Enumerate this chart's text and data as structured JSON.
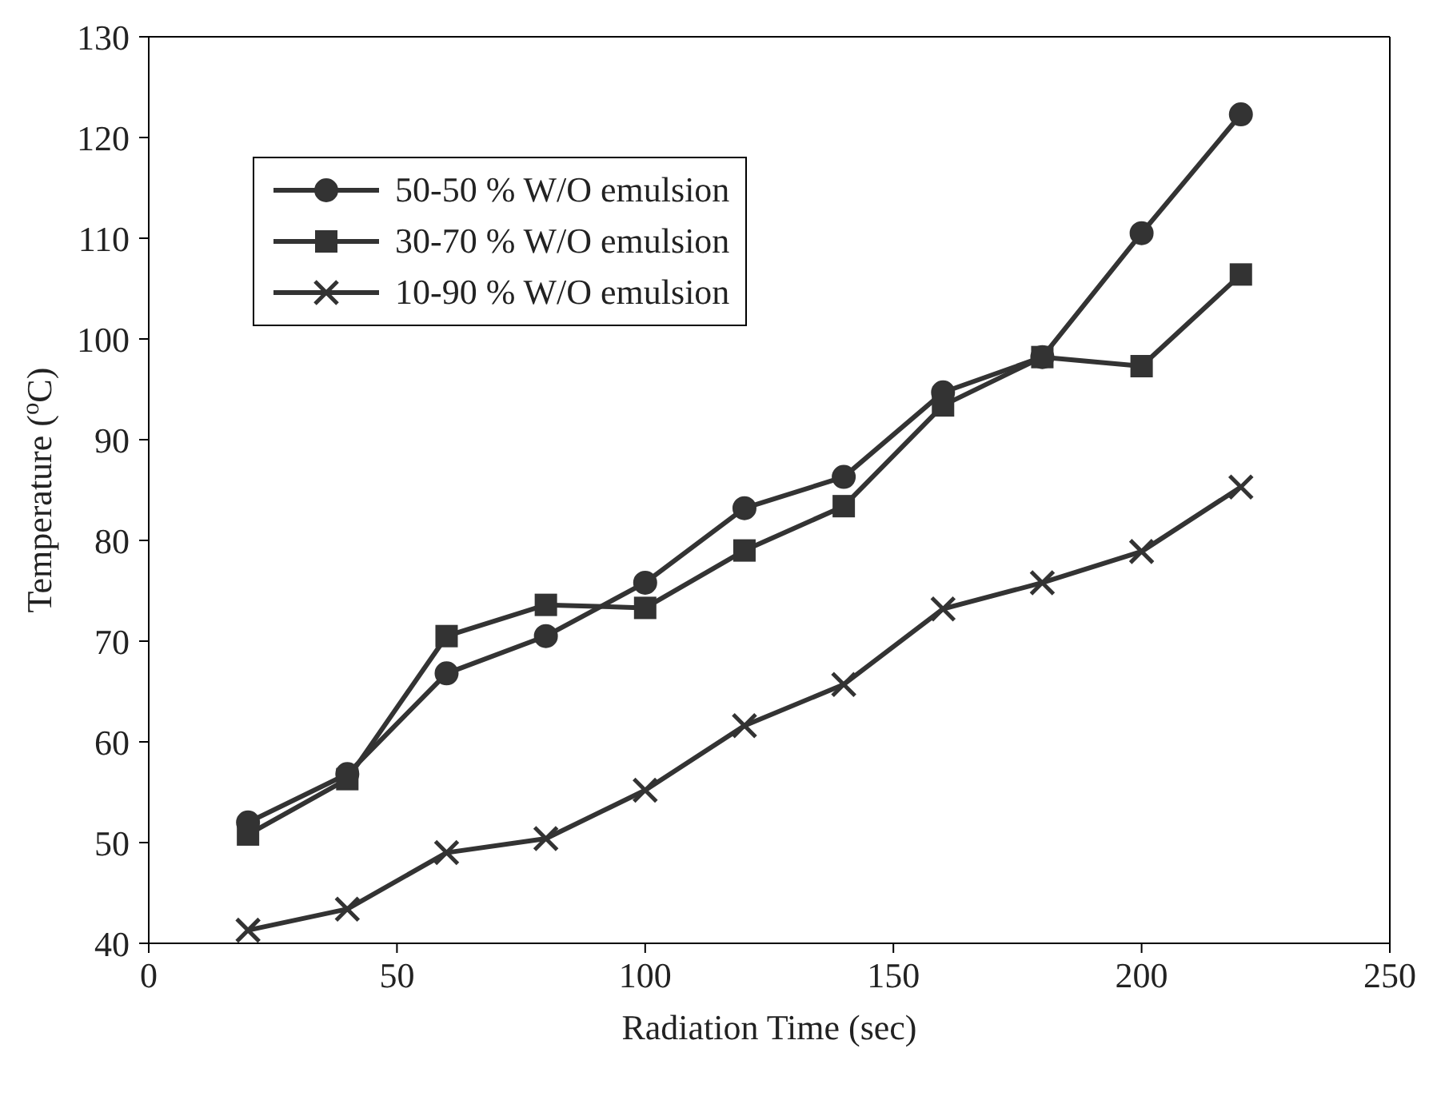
{
  "chart_data": {
    "type": "line",
    "xlabel": "Radiation Time (sec)",
    "ylabel": "Temperature ($^{o}$C)",
    "x": [
      20,
      40,
      60,
      80,
      100,
      120,
      140,
      160,
      180,
      200,
      220
    ],
    "series": [
      {
        "name": "50-50 % W/O emulsion",
        "color": "#333333",
        "marker": "circle",
        "values": [
          52,
          56.8,
          66.8,
          70.5,
          75.8,
          83.2,
          86.3,
          94.7,
          98.2,
          110.5,
          122.3
        ]
      },
      {
        "name": "30-70 % W/O emulsion",
        "color": "#333333",
        "marker": "square",
        "values": [
          50.8,
          56.3,
          70.5,
          73.6,
          73.3,
          79,
          83.4,
          93.4,
          98.2,
          97.3,
          106.4
        ]
      },
      {
        "name": "10-90 % W/O emulsion",
        "color": "#333333",
        "marker": "cross",
        "values": [
          41.3,
          43.4,
          49,
          50.4,
          55.2,
          61.6,
          65.7,
          73.2,
          75.8,
          78.9,
          85.3
        ]
      }
    ],
    "xlim": [
      0,
      250
    ],
    "xticks": [
      0,
      50,
      100,
      150,
      200,
      250
    ],
    "ylim": [
      40,
      130
    ],
    "yticks": [
      40,
      50,
      60,
      70,
      80,
      90,
      100,
      110,
      120,
      130
    ],
    "grid": false,
    "legend": "top left",
    "line_style": "solid"
  }
}
